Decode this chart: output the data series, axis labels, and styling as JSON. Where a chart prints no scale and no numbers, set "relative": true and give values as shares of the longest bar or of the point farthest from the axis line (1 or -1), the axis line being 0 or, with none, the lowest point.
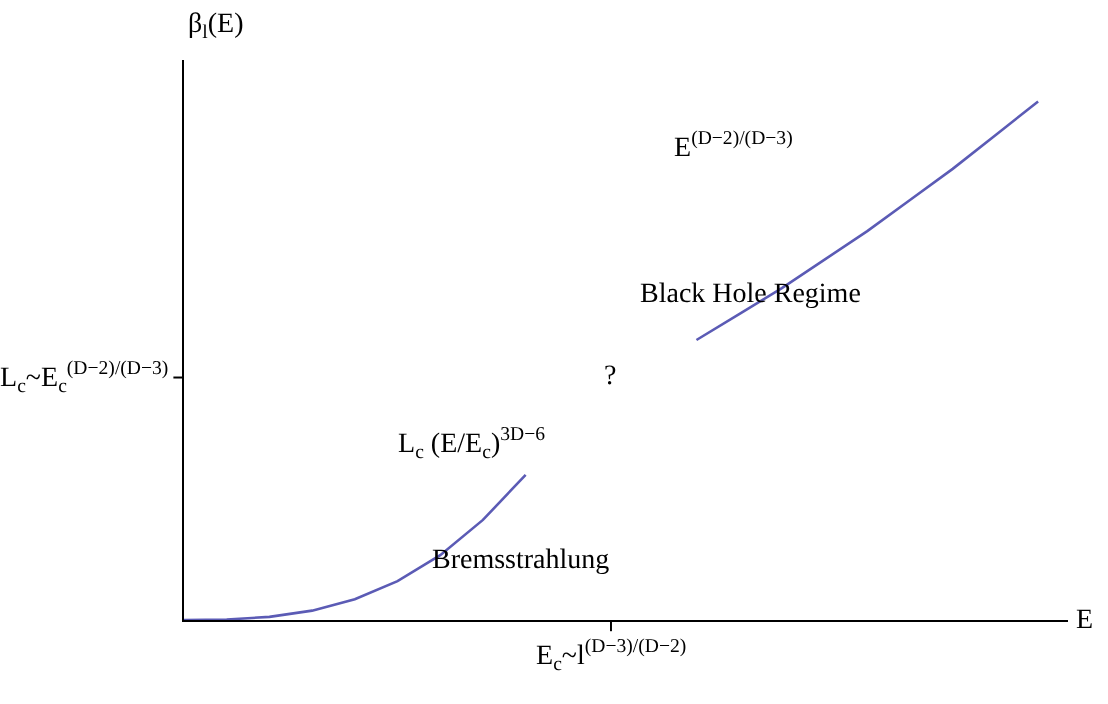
{
  "chart_data": {
    "type": "line",
    "relative": true,
    "xlabel": "E",
    "ylabel": "β$_{l}$(E)",
    "categories": [
      null,
      null,
      null,
      null,
      null,
      null,
      null,
      null,
      null,
      null,
      null,
      null,
      null,
      null,
      null,
      null,
      null,
      null,
      null,
      null,
      null
    ],
    "series": [
      {
        "color": "#5b5bb5",
        "values": [
          0,
          0.001,
          0.006,
          0.018,
          0.04,
          0.075,
          0.125,
          0.193,
          0.28,
          null,
          null,
          null,
          null,
          null,
          null,
          null,
          null,
          null,
          null,
          null,
          null
        ]
      },
      {
        "color": "#5b5bb5",
        "values": [
          null,
          null,
          null,
          null,
          null,
          null,
          null,
          null,
          null,
          null,
          null,
          null,
          0.54,
          0.59,
          0.64,
          0.695,
          0.75,
          0.81,
          0.87,
          0.935,
          1
        ]
      }
    ],
    "annotations": [
      "E$^{(D−2)/(D−3)}$",
      "Black Hole Regime",
      "?",
      "L$_{c}$ (E/E$_{c}$)$^{3D−6}$",
      "Bremsstrahlung",
      "E$_{c}$~l$^{(D−3)/(D−2)}$",
      "L$_{c}$~E$_{c}$$^{(D−2)/(D−3)}$"
    ],
    "marker": "none",
    "line_style": "solid"
  }
}
